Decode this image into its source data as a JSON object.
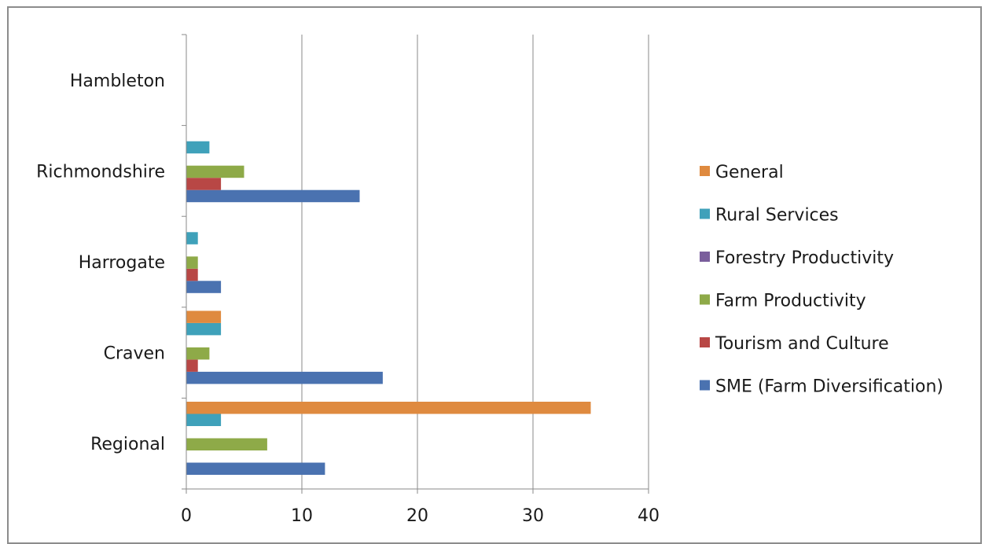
{
  "chart_data": {
    "type": "bar",
    "orientation": "horizontal",
    "categories": [
      "Regional",
      "Craven",
      "Harrogate",
      "Richmondshire",
      "Hambleton"
    ],
    "series": [
      {
        "name": "SME (Farm Diversification)",
        "color": "#4a72b0",
        "values": [
          12,
          17,
          3,
          15,
          0
        ]
      },
      {
        "name": "Tourism and Culture",
        "color": "#b84745",
        "values": [
          0,
          1,
          1,
          3,
          0
        ]
      },
      {
        "name": "Farm Productivity",
        "color": "#8eaa48",
        "values": [
          7,
          2,
          1,
          5,
          0
        ]
      },
      {
        "name": "Forestry Productivity",
        "color": "#7a5e9c",
        "values": [
          0,
          0,
          0,
          0,
          0
        ]
      },
      {
        "name": "Rural Services",
        "color": "#3fa1ba",
        "values": [
          3,
          3,
          1,
          2,
          0
        ]
      },
      {
        "name": "General",
        "color": "#df8a3f",
        "values": [
          35,
          3,
          0,
          0,
          0
        ]
      }
    ],
    "xlim": [
      0,
      40
    ],
    "xticks": [
      0,
      10,
      20,
      30,
      40
    ],
    "grid": "vertical",
    "legend": "right"
  }
}
